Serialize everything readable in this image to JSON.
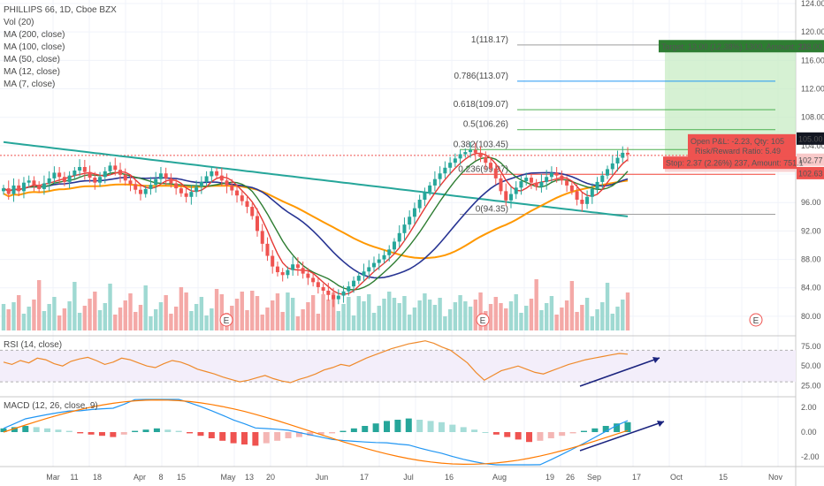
{
  "legend": {
    "title": "PHILLIPS 66, 1D, Cboe BZX",
    "items": [
      "Vol (20)",
      "MA (200, close)",
      "MA (100, close)",
      "MA (50, close)",
      "MA (12, close)",
      "MA (7, close)"
    ]
  },
  "price_axis": {
    "ticks": [
      "124.00",
      "120.00",
      "116.00",
      "112.00",
      "108.00",
      "104.00",
      "100.00",
      "96.00",
      "92.00",
      "88.00",
      "84.00",
      "80.00"
    ],
    "min": 78,
    "max": 124
  },
  "price_tags": {
    "current": "102.77",
    "entry": "102.63",
    "stop_level": "105.00",
    "target": "118.00"
  },
  "position": {
    "target_text": "Target: 13.00 (12.38%) 1300, Amount: 23",
    "pnl_text": "Open P&L: -2.23, Qty: 105",
    "ratio_text": "Risk/Reward Ratio: 5.49",
    "stop_text": "Stop: 2.37 (2.26%) 237, Amount: 751.1"
  },
  "fib": [
    {
      "label": "1(118.17)",
      "price": 118.17
    },
    {
      "label": "0.786(113.07)",
      "price": 113.07
    },
    {
      "label": "0.618(109.07)",
      "price": 109.07
    },
    {
      "label": "0.5(106.26)",
      "price": 106.26
    },
    {
      "label": "0.382(103.45)",
      "price": 103.45
    },
    {
      "label": "0.236(99.97)",
      "price": 99.97
    },
    {
      "label": "0(94.35)",
      "price": 94.35
    }
  ],
  "earnings_marker": "E",
  "rsi": {
    "title": "RSI (14, close)",
    "ticks": [
      "75.00",
      "50.00",
      "25.00"
    ]
  },
  "macd": {
    "title": "MACD (12, 26, close, 9)",
    "ticks": [
      "2.00",
      "0.00",
      "-2.00"
    ]
  },
  "time_axis": [
    "Mar",
    "11",
    "18",
    "Apr",
    "8",
    "15",
    "May",
    "13",
    "20",
    "Jun",
    "17",
    "Jul",
    "16",
    "Aug",
    "19",
    "26",
    "Sep",
    "17",
    "Oct",
    "15",
    "Nov"
  ],
  "colors": {
    "up": "#26a69a",
    "down": "#ef5350",
    "ma200": "#26a69a",
    "ma100": "#ff9800",
    "ma50": "#283593",
    "ma12": "#2e7d32",
    "ma7": "#e53935",
    "rsi": "#ef8a2b",
    "macd": "#2196f3",
    "signal": "#ff7a00"
  },
  "chart_data": {
    "type": "candlestick",
    "x_start": "Mar",
    "x_end": "Sep",
    "ohlc_close": [
      98.0,
      97.2,
      98.4,
      97.6,
      98.8,
      99.1,
      98.5,
      97.9,
      98.7,
      99.4,
      100.2,
      99.6,
      98.9,
      99.8,
      100.5,
      101.0,
      100.3,
      99.5,
      98.8,
      99.6,
      100.4,
      101.2,
      100.6,
      99.9,
      99.1,
      98.6,
      97.8,
      97.2,
      97.9,
      98.5,
      99.3,
      100.1,
      99.4,
      98.7,
      98.0,
      97.3,
      96.8,
      97.5,
      98.2,
      98.9,
      99.7,
      100.4,
      99.8,
      99.1,
      98.4,
      97.7,
      97.0,
      96.2,
      95.4,
      94.1,
      92.0,
      90.2,
      88.5,
      87.0,
      86.2,
      85.8,
      86.5,
      87.3,
      86.8,
      86.0,
      85.4,
      84.8,
      84.1,
      83.6,
      83.0,
      82.4,
      82.9,
      83.5,
      84.2,
      85.0,
      85.7,
      86.3,
      86.9,
      87.5,
      88.0,
      88.6,
      89.4,
      90.5,
      91.7,
      92.9,
      94.0,
      95.2,
      96.4,
      97.5,
      98.4,
      99.3,
      100.1,
      100.9,
      101.6,
      102.2,
      102.8,
      103.1,
      103.4,
      103.0,
      102.4,
      101.6,
      100.8,
      99.4,
      97.6,
      96.3,
      97.2,
      98.1,
      99.0,
      99.5,
      98.8,
      98.2,
      98.9,
      99.6,
      100.2,
      99.8,
      99.1,
      98.4,
      97.6,
      96.4,
      95.8,
      96.8,
      97.9,
      98.9,
      99.8,
      100.7,
      101.5,
      102.3,
      103.0,
      102.77
    ],
    "ma_series": [
      "MA 200",
      "MA 100",
      "MA 50",
      "MA 12",
      "MA 7"
    ],
    "rsi": [
      55,
      52,
      57,
      54,
      60,
      58,
      53,
      50,
      56,
      59,
      61,
      57,
      52,
      55,
      60,
      58,
      54,
      50,
      48,
      53,
      57,
      55,
      51,
      46,
      43,
      40,
      36,
      33,
      30,
      32,
      35,
      38,
      34,
      31,
      29,
      33,
      36,
      40,
      45,
      48,
      52,
      50,
      55,
      60,
      64,
      68,
      72,
      75,
      78,
      80,
      82,
      79,
      74,
      70,
      62,
      54,
      42,
      32,
      38,
      44,
      47,
      50,
      46,
      42,
      40,
      44,
      48,
      52,
      55,
      58,
      60,
      62,
      64,
      66,
      65
    ],
    "macd_hist": [
      0.3,
      0.4,
      0.5,
      0.4,
      0.3,
      0.2,
      0.1,
      -0.1,
      -0.2,
      -0.3,
      -0.4,
      -0.2,
      0.1,
      0.2,
      0.3,
      0.2,
      0.1,
      -0.1,
      -0.3,
      -0.5,
      -0.7,
      -0.9,
      -1.0,
      -1.1,
      -0.9,
      -0.7,
      -0.5,
      -0.4,
      -0.3,
      -0.2,
      -0.1,
      0.1,
      0.3,
      0.5,
      0.7,
      0.9,
      1.0,
      1.1,
      1.0,
      0.9,
      0.8,
      0.6,
      0.4,
      0.2,
      0.0,
      -0.2,
      -0.4,
      -0.6,
      -0.8,
      -0.7,
      -0.5,
      -0.3,
      -0.1,
      0.1,
      0.3,
      0.5,
      0.7,
      0.8
    ]
  }
}
